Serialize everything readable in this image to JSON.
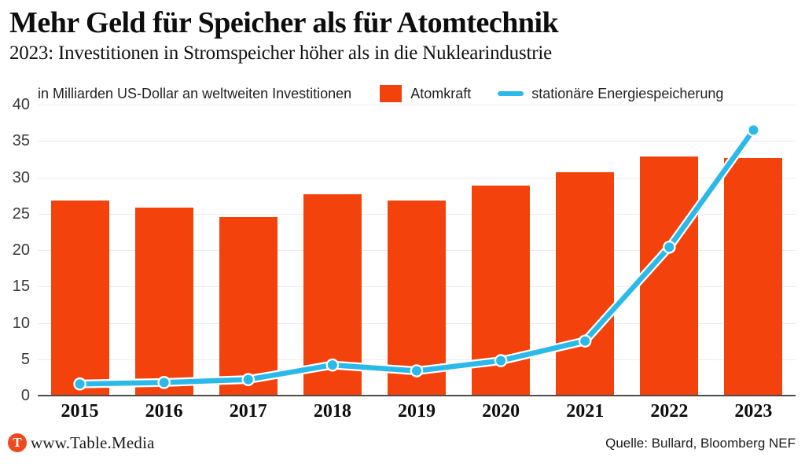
{
  "header": {
    "title": "Mehr Geld für Speicher als für Atomtechnik",
    "subtitle": "2023: Investitionen in Stromspeicher höher als in die Nuklearindustrie"
  },
  "legend": {
    "unit_label": "in Milliarden US-Dollar an weltweiten Investitionen",
    "items": [
      {
        "label": "Atomkraft",
        "swatch": "bar-swatch-icon"
      },
      {
        "label": "stationäre Energiespeicherung",
        "swatch": "line-swatch-icon"
      }
    ]
  },
  "chart_data": {
    "type": "bar",
    "title": "Mehr Geld für Speicher als für Atomtechnik",
    "subtitle": "2023: Investitionen in Stromspeicher höher als in die Nuklearindustrie",
    "ylabel": "in Milliarden US-Dollar an weltweiten Investitionen",
    "categories": [
      "2015",
      "2016",
      "2017",
      "2018",
      "2019",
      "2020",
      "2021",
      "2022",
      "2023"
    ],
    "series": [
      {
        "name": "Atomkraft",
        "type": "bar",
        "color": "#f4420c",
        "values": [
          26.8,
          25.8,
          24.5,
          27.7,
          26.8,
          28.9,
          30.7,
          32.9,
          32.6
        ]
      },
      {
        "name": "stationäre Energiespeicherung",
        "type": "line",
        "color": "#2bb9e9",
        "values": [
          1.6,
          1.8,
          2.2,
          4.2,
          3.4,
          4.8,
          7.5,
          20.4,
          36.5
        ]
      }
    ],
    "ylim": [
      0,
      40
    ],
    "yticks": [
      0,
      5,
      10,
      15,
      20,
      25,
      30,
      35,
      40
    ],
    "grid": true,
    "legend_position": "top"
  },
  "colors": {
    "bar": "#f4420c",
    "line": "#2bb9e9",
    "grid": "#ececec",
    "axis": "#4d4d4d",
    "logo": "#ee491f"
  },
  "footer": {
    "logo_letter": "T",
    "site": "www.Table.Media",
    "source": "Quelle: Bullard, Bloomberg NEF"
  }
}
